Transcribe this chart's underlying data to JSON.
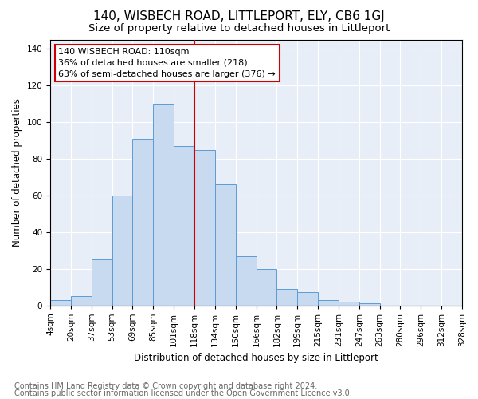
{
  "title": "140, WISBECH ROAD, LITTLEPORT, ELY, CB6 1GJ",
  "subtitle": "Size of property relative to detached houses in Littleport",
  "xlabel": "Distribution of detached houses by size in Littleport",
  "ylabel": "Number of detached properties",
  "footer1": "Contains HM Land Registry data © Crown copyright and database right 2024.",
  "footer2": "Contains public sector information licensed under the Open Government Licence v3.0.",
  "bin_labels": [
    "4sqm",
    "20sqm",
    "37sqm",
    "53sqm",
    "69sqm",
    "85sqm",
    "101sqm",
    "118sqm",
    "134sqm",
    "150sqm",
    "166sqm",
    "182sqm",
    "199sqm",
    "215sqm",
    "231sqm",
    "247sqm",
    "263sqm",
    "280sqm",
    "296sqm",
    "312sqm",
    "328sqm"
  ],
  "bar_values": [
    3,
    5,
    25,
    60,
    91,
    110,
    87,
    85,
    66,
    27,
    20,
    9,
    7,
    3,
    2,
    1,
    0,
    0,
    0,
    0
  ],
  "bar_color": "#c8daf0",
  "bar_edge_color": "#5b9bd5",
  "annotation_line1": "140 WISBECH ROAD: 110sqm",
  "annotation_line2": "36% of detached houses are smaller (218)",
  "annotation_line3": "63% of semi-detached houses are larger (376) →",
  "red_line_bin_index": 6.5,
  "red_line_color": "#cc0000",
  "annotation_box_edge": "#cc0000",
  "ylim": [
    0,
    145
  ],
  "yticks": [
    0,
    20,
    40,
    60,
    80,
    100,
    120,
    140
  ],
  "title_fontsize": 11,
  "subtitle_fontsize": 9.5,
  "axis_label_fontsize": 8.5,
  "tick_fontsize": 7.5,
  "footer_fontsize": 7,
  "annotation_fontsize": 8
}
